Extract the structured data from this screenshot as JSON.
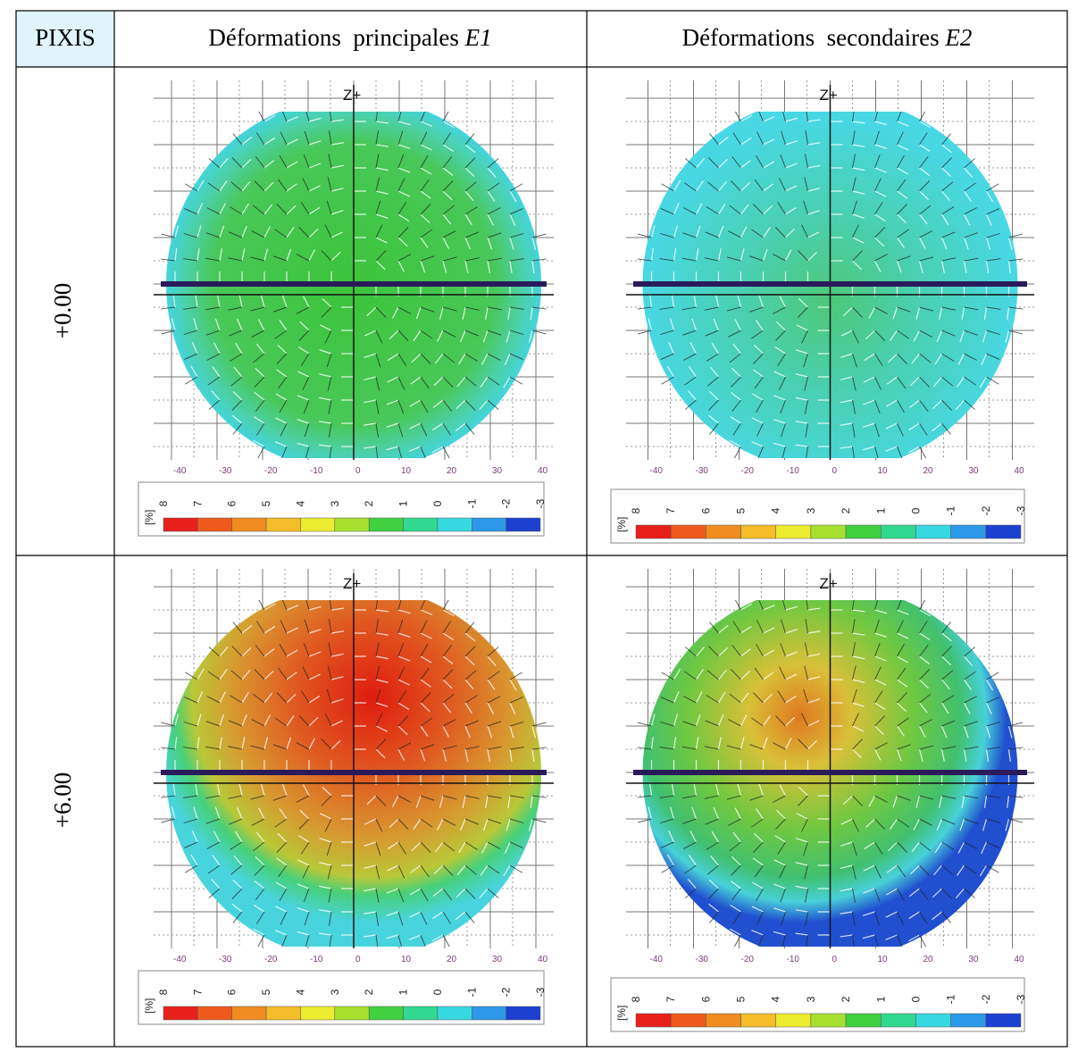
{
  "header": {
    "col0": "PIXIS",
    "col1": {
      "text": "Déformations  principales ",
      "var": "E1"
    },
    "col2": {
      "text": "Déformations  secondaires ",
      "var": "E2"
    }
  },
  "rows": [
    {
      "label": "+0.00"
    },
    {
      "label": "+6.00"
    }
  ],
  "plot_labels": {
    "axis": "Z+",
    "x_ticks": [
      "-40",
      "-30",
      "-20",
      "-10",
      "0",
      "10",
      "20",
      "30",
      "40"
    ],
    "unit": "[%]",
    "scale_ticks": [
      "8",
      "7",
      "6",
      "5",
      "4",
      "3",
      "2",
      "1",
      "0",
      "-1",
      "-2",
      "-3"
    ]
  }
}
